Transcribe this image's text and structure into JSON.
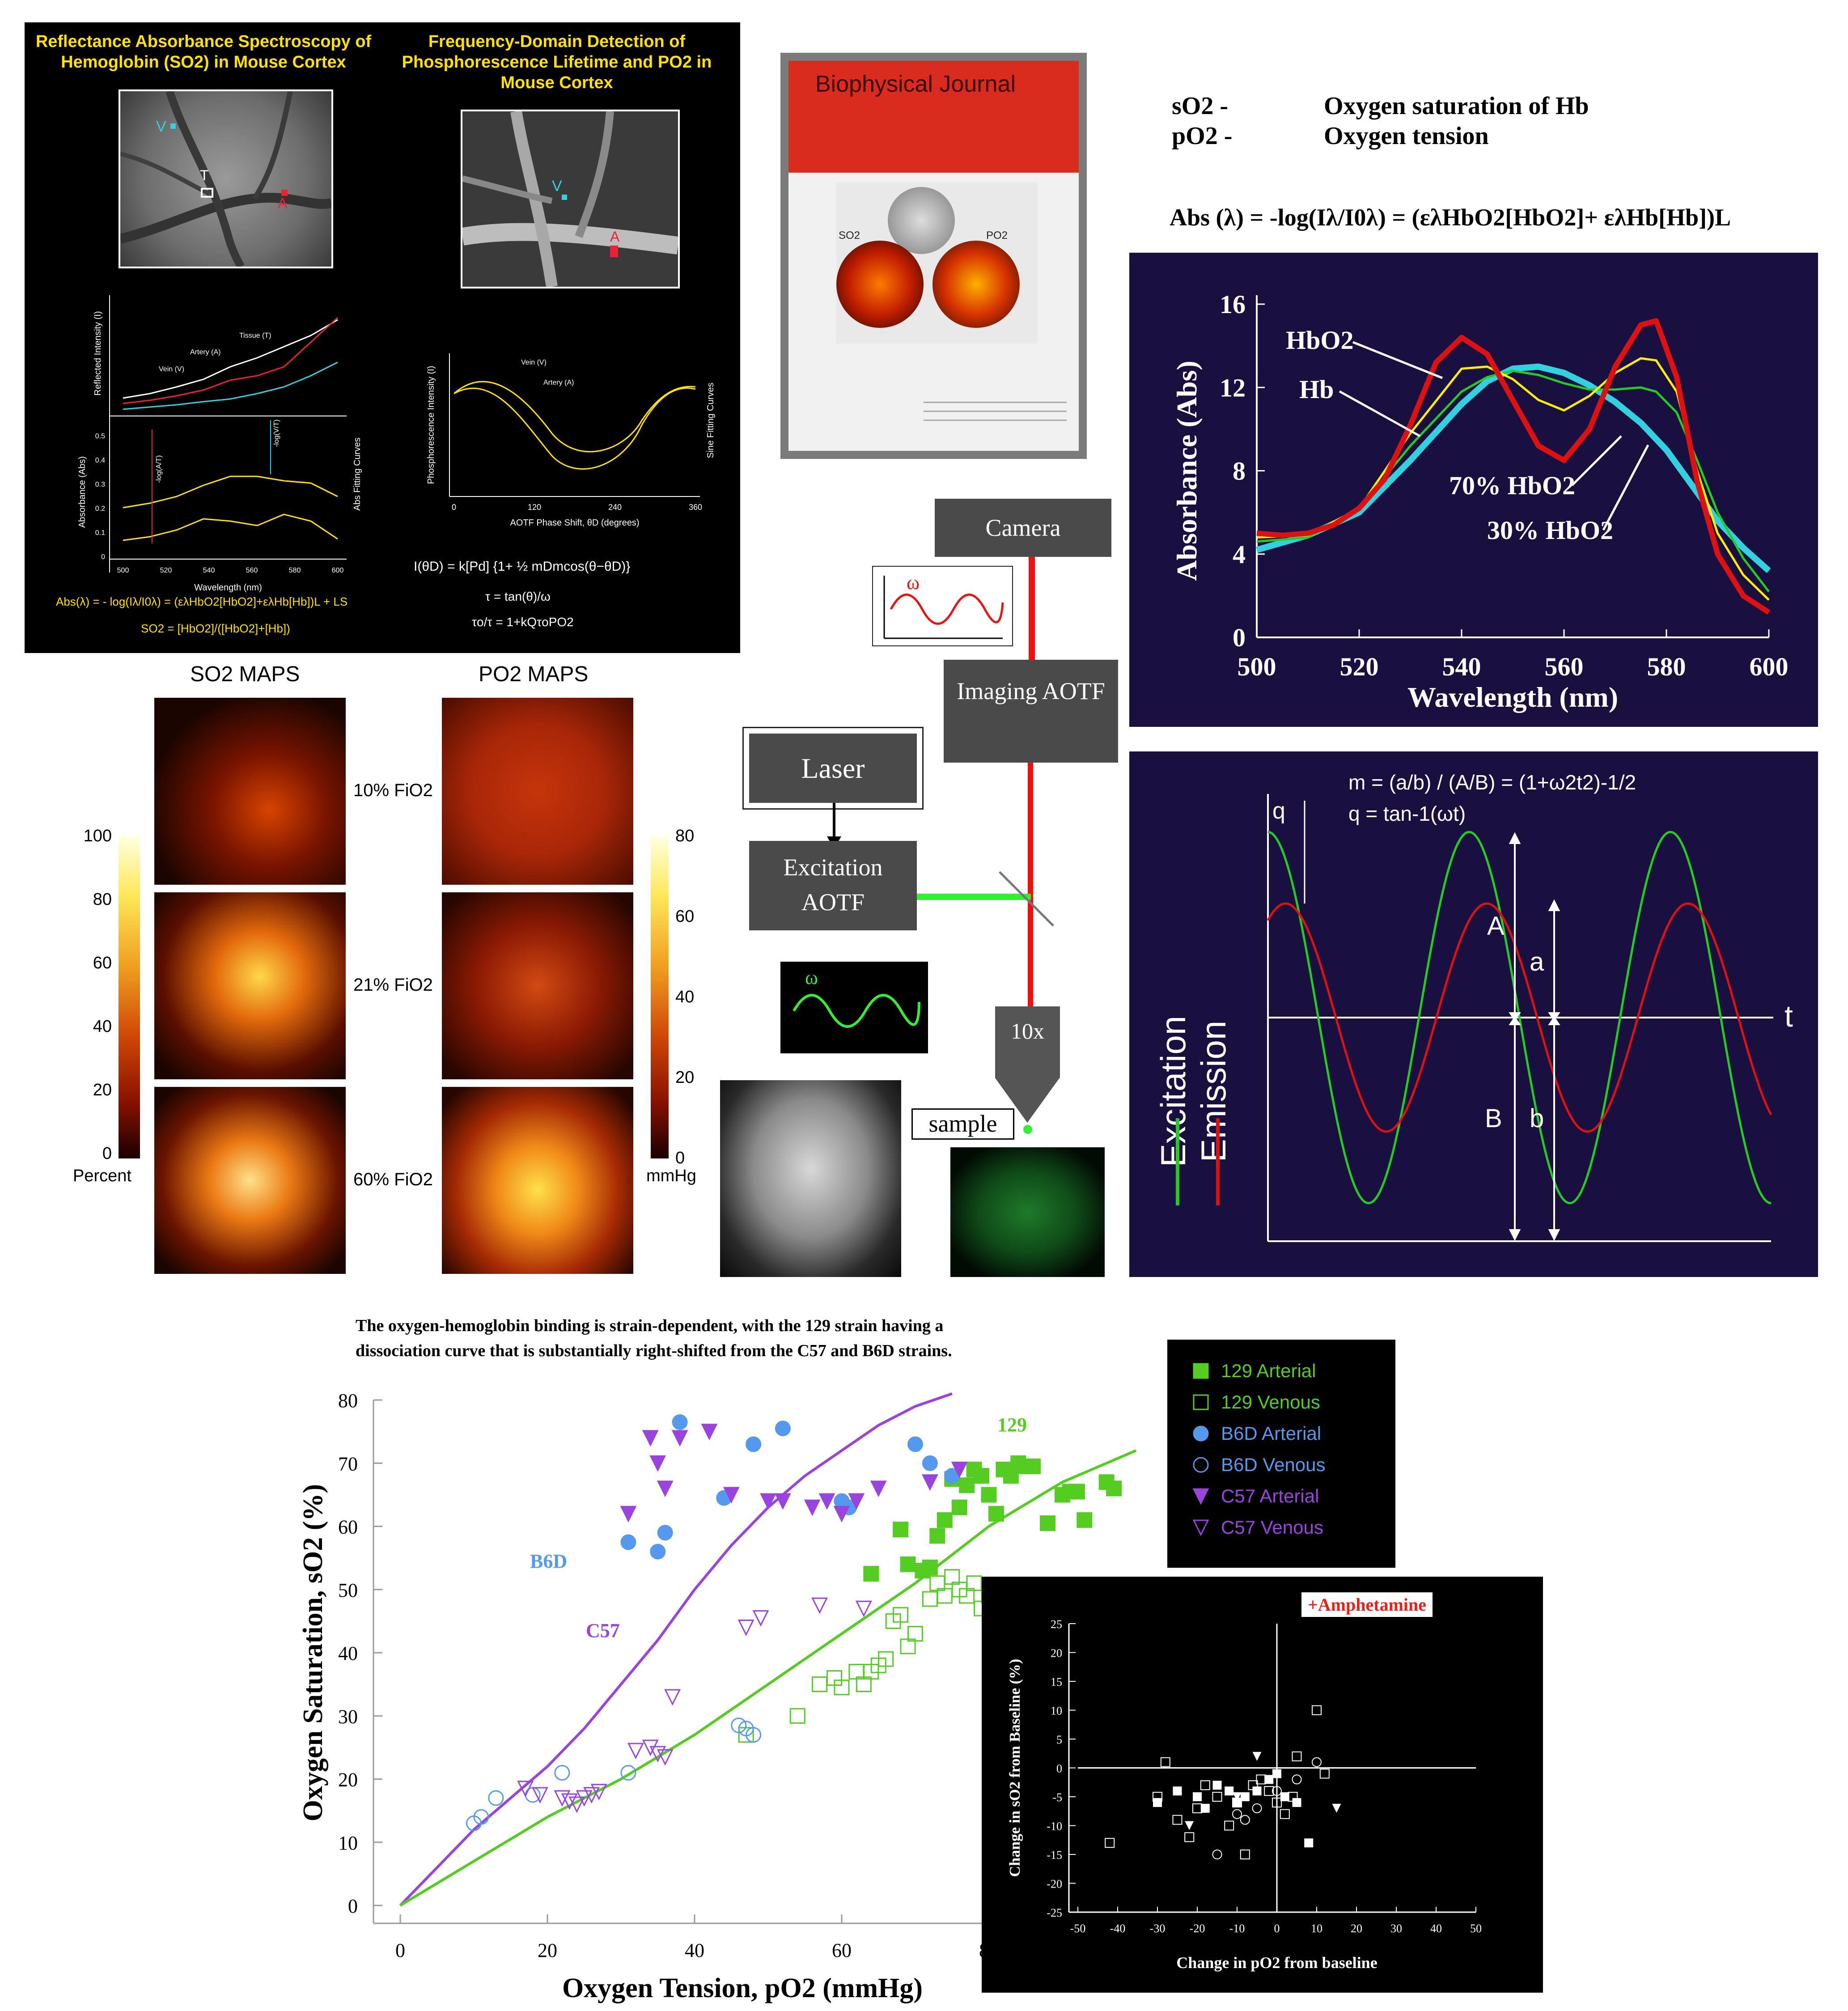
{
  "spectroscopy_panel": {
    "left_title": "Reflectance Absorbance Spectroscopy of Hemoglobin (SO2) in Mouse Cortex",
    "right_title": "Frequency-Domain Detection of Phosphorescence Lifetime and PO2 in Mouse Cortex",
    "left_image_labels": {
      "vein": "V",
      "tissue": "T",
      "artery": "A"
    },
    "right_image_labels": {
      "vein": "V",
      "artery": "A"
    },
    "reflect_ylabel": "Reflected Intensity (I)",
    "reflect_legend": [
      "Tissue (T)",
      "Artery (A)",
      "Vein (V)"
    ],
    "abs_ylabel": "Absorbance (Abs)",
    "abs_yticks": [
      "0.5",
      "0.4",
      "0.3",
      "0.2",
      "0.1",
      "0"
    ],
    "abs_right_label": "Abs Fitting Curves",
    "log_labels": [
      "-log(A/T)",
      "-log(V/T)"
    ],
    "wavelength_ticks": [
      "500",
      "520",
      "540",
      "560",
      "580",
      "600"
    ],
    "wavelength_xlabel": "Wavelength (nm)",
    "eq_abs": "Abs(λ) = - log(Iλ/I0λ) = (ελHbO2[HbO2]+ελHb[Hb])L + LS",
    "eq_so2": "SO2 = [HbO2]/([HbO2]+[Hb])",
    "phos_ylabel": "Phosphorescence Intensity (I)",
    "phos_legend": [
      "Vein (V)",
      "Artery (A)"
    ],
    "phos_right_label": "Sine Fitting Curves",
    "phase_ticks": [
      "0",
      "120",
      "240",
      "360"
    ],
    "phase_xlabel": "AOTF Phase Shift, θD (degrees)",
    "eq_phase": "I(θD) = k[Pd] {1+ ½ mDmcos(θ−θD)}",
    "eq_tau": "τ = tan(θ)/ω",
    "eq_stern": "τo/τ = 1+kQτoPO2"
  },
  "journal": {
    "title": "Biophysical Journal",
    "so2_label": "SO2",
    "po2_label": "PO2"
  },
  "definitions": {
    "so2_term": "sO2 -",
    "so2_def": "Oxygen saturation of Hb",
    "po2_term": "pO2 -",
    "po2_def": "Oxygen tension",
    "equation": "Abs (λ) = -log(Iλ/I0λ) = (ελHbO2[HbO2]+ ελHb[Hb])L"
  },
  "maps": {
    "so2_title": "SO2 MAPS",
    "po2_title": "PO2 MAPS",
    "fio2_labels": [
      "10% FiO2",
      "21% FiO2",
      "60% FiO2"
    ],
    "so2_scale": {
      "ticks": [
        "100",
        "80",
        "60",
        "40",
        "20",
        "0"
      ],
      "unit": "Percent"
    },
    "po2_scale": {
      "ticks": [
        "80",
        "60",
        "40",
        "20",
        "0"
      ],
      "unit": "mmHg"
    }
  },
  "setup": {
    "camera": "Camera",
    "imaging_aotf": "Imaging AOTF",
    "laser": "Laser",
    "excitation_aotf": "Excitation AOTF",
    "objective": "10x",
    "sample": "sample",
    "omega": "ω"
  },
  "waveform": {
    "eq_m": "m = (a/b) / (A/B) = (1+ω2t2)-1/2",
    "eq_q": "q = tan-1(ωt)",
    "q_label": "q",
    "labels": {
      "A": "A",
      "a": "a",
      "B": "B",
      "b": "b",
      "t": "t"
    },
    "legend": [
      "Excitation",
      "Emission"
    ],
    "colors": {
      "excitation": "#22cc22",
      "emission": "#dd1111"
    }
  },
  "abs_chart": {
    "annotations": [
      "HbO2",
      "Hb",
      "70% HbO2",
      "30% HbO2"
    ]
  },
  "dissociation": {
    "caption_line1": "The oxygen-hemoglobin binding is strain-dependent, with the 129 strain having a",
    "caption_line2": "dissociation curve that is substantially right-shifted from the C57 and B6D strains.",
    "curve_labels": [
      "129",
      "B6D",
      "C57"
    ],
    "legend": [
      "129 Arterial",
      "129 Venous",
      "B6D Arterial",
      "B6D Venous",
      "C57 Arterial",
      "C57 Venous"
    ]
  },
  "amphetamine": {
    "label": "+Amphetamine"
  },
  "chart_data": [
    {
      "type": "line",
      "title": "",
      "xlabel": "Wavelength (nm)",
      "ylabel": "Absorbance (Abs)",
      "xlim": [
        500,
        600
      ],
      "ylim": [
        0,
        16
      ],
      "xticks": [
        500,
        520,
        540,
        560,
        580,
        600
      ],
      "yticks": [
        0,
        4,
        8,
        12,
        16
      ],
      "background": "#1a1040",
      "series": [
        {
          "name": "HbO2",
          "color": "#dd1111",
          "x": [
            500,
            505,
            510,
            515,
            520,
            525,
            530,
            535,
            540,
            545,
            550,
            555,
            560,
            565,
            570,
            575,
            578,
            582,
            586,
            590,
            595,
            600
          ],
          "y": [
            5.0,
            4.9,
            5.0,
            5.4,
            6.2,
            7.6,
            10.2,
            13.2,
            14.4,
            13.6,
            11.4,
            9.2,
            8.5,
            10.0,
            13.0,
            15.0,
            15.2,
            12.5,
            7.5,
            4.0,
            2.0,
            1.2
          ]
        },
        {
          "name": "70% HbO2",
          "color": "#ffee00",
          "x": [
            500,
            510,
            520,
            530,
            540,
            545,
            550,
            555,
            560,
            565,
            570,
            575,
            578,
            582,
            586,
            590,
            595,
            600
          ],
          "y": [
            4.8,
            4.9,
            6.2,
            9.8,
            12.9,
            13.0,
            12.4,
            11.4,
            10.9,
            11.6,
            12.7,
            13.4,
            13.3,
            11.8,
            8.0,
            5.0,
            3.0,
            1.8
          ]
        },
        {
          "name": "30% HbO2",
          "color": "#22cc22",
          "x": [
            500,
            510,
            520,
            530,
            540,
            545,
            550,
            555,
            560,
            565,
            570,
            575,
            578,
            582,
            586,
            590,
            595,
            600
          ],
          "y": [
            4.6,
            4.8,
            6.2,
            9.2,
            11.8,
            12.5,
            12.8,
            12.6,
            12.2,
            11.9,
            11.9,
            12.0,
            11.8,
            10.8,
            8.5,
            6.0,
            3.8,
            2.2
          ]
        },
        {
          "name": "Hb",
          "color": "#33d0e0",
          "x": [
            500,
            510,
            520,
            530,
            540,
            545,
            550,
            555,
            560,
            565,
            570,
            575,
            580,
            585,
            590,
            595,
            600
          ],
          "y": [
            4.2,
            4.9,
            6.0,
            8.5,
            11.2,
            12.3,
            12.9,
            13.0,
            12.7,
            12.1,
            11.3,
            10.3,
            9.0,
            7.3,
            5.6,
            4.3,
            3.2
          ]
        }
      ]
    },
    {
      "type": "scatter",
      "title": "",
      "xlabel": "Oxygen Tension, pO2 (mmHg)",
      "ylabel": "Oxygen Saturation, sO2 (%)",
      "xlim": [
        0,
        100
      ],
      "ylim": [
        0,
        80
      ],
      "xticks": [
        0,
        20,
        40,
        60,
        80
      ],
      "yticks": [
        0,
        10,
        20,
        30,
        40,
        50,
        60,
        70,
        80
      ],
      "series": [
        {
          "name": "129 Arterial",
          "marker": "square-filled",
          "color": "#55cc22",
          "x": [
            64,
            68,
            69,
            71,
            72,
            73,
            74,
            75,
            76,
            77,
            78,
            79,
            80,
            81,
            82,
            83,
            84,
            85,
            86,
            88,
            90,
            91,
            92,
            93,
            96,
            97
          ],
          "y": [
            52.5,
            59.5,
            54,
            53,
            53.5,
            58.5,
            61,
            67.5,
            63,
            66.5,
            69,
            68,
            65,
            62,
            69,
            68,
            70,
            69.5,
            69.5,
            60.5,
            65,
            65.5,
            65.5,
            61,
            67,
            66
          ]
        },
        {
          "name": "129 Venous",
          "marker": "square-open",
          "color": "#55cc22",
          "x": [
            47,
            54,
            57,
            59,
            60,
            62,
            63,
            64,
            65,
            66,
            67,
            68,
            69,
            70,
            72,
            73,
            74,
            75,
            76,
            77,
            78,
            79,
            80,
            82
          ],
          "y": [
            27,
            30,
            35,
            36,
            34.5,
            37,
            35,
            37,
            38,
            39,
            45,
            46,
            41,
            43,
            48.5,
            51,
            49,
            52,
            50,
            49,
            51,
            47,
            49,
            48
          ]
        },
        {
          "name": "B6D Arterial",
          "marker": "circle-filled",
          "color": "#5599ee",
          "x": [
            31,
            35,
            36,
            38,
            44,
            48,
            52,
            60,
            61,
            70,
            72,
            75
          ],
          "y": [
            57.5,
            56,
            59,
            76.5,
            64.5,
            73,
            75.5,
            64,
            63,
            73,
            70,
            68
          ]
        },
        {
          "name": "B6D Venous",
          "marker": "circle-open",
          "color": "#5599ee",
          "x": [
            10,
            11,
            13,
            18,
            22,
            31,
            46,
            47,
            48
          ],
          "y": [
            13,
            14,
            17,
            17.5,
            21,
            21,
            28.5,
            28,
            27
          ]
        },
        {
          "name": "C57 Arterial",
          "marker": "triangle-filled",
          "color": "#9944dd",
          "x": [
            31,
            34,
            35,
            36,
            38,
            42,
            45,
            50,
            52,
            56,
            58,
            60,
            62,
            65,
            72,
            76
          ],
          "y": [
            62,
            74,
            70,
            66,
            74,
            75,
            65,
            64,
            64,
            63,
            64,
            62,
            64,
            66,
            67,
            69
          ]
        },
        {
          "name": "C57 Venous",
          "marker": "triangle-open",
          "color": "#9944dd",
          "x": [
            17,
            19,
            22,
            23,
            24,
            25,
            26,
            27,
            32,
            34,
            35,
            36,
            37,
            47,
            49,
            57,
            63
          ],
          "y": [
            18.5,
            17.5,
            17,
            16.5,
            16,
            17,
            17.5,
            18,
            24.5,
            25,
            24,
            23.5,
            33,
            44,
            45.5,
            47.5,
            47
          ]
        }
      ],
      "curves": [
        {
          "name": "C57",
          "color": "#9944dd",
          "x": [
            0,
            5,
            10,
            15,
            20,
            25,
            30,
            35,
            40,
            45,
            50,
            55,
            60,
            65,
            70,
            75
          ],
          "y": [
            0,
            6,
            12,
            17,
            22,
            28,
            35,
            42,
            50,
            57,
            63,
            68,
            72,
            76,
            79,
            81
          ]
        },
        {
          "name": "129",
          "color": "#55cc22",
          "x": [
            0,
            10,
            20,
            30,
            40,
            50,
            60,
            70,
            80,
            90,
            100
          ],
          "y": [
            0,
            7,
            14,
            20,
            27,
            35,
            43,
            51,
            60,
            67,
            72
          ]
        }
      ]
    },
    {
      "type": "scatter",
      "title": "",
      "xlabel": "Change in pO2 from baseline",
      "ylabel": "Change in sO2 from Baseline (%)",
      "xlim": [
        -50,
        50
      ],
      "ylim": [
        -25,
        25
      ],
      "xticks": [
        -50,
        -40,
        -30,
        -20,
        -10,
        0,
        10,
        20,
        30,
        40,
        50
      ],
      "yticks": [
        25,
        20,
        15,
        10,
        5,
        0,
        -5,
        -10,
        -15,
        -20,
        -25
      ],
      "series": [
        {
          "name": "open squares",
          "marker": "square-open",
          "x": [
            -42,
            -30,
            -28,
            -25,
            -22,
            -20,
            -18,
            -15,
            -12,
            -10,
            -8,
            -6,
            -4,
            -2,
            0,
            2,
            4,
            5,
            10,
            12
          ],
          "y": [
            -13,
            -5,
            1,
            -9,
            -12,
            -7,
            -3,
            -5,
            -10,
            -6,
            -15,
            -3,
            -2,
            -4,
            -6,
            -8,
            -5,
            2,
            10,
            -1
          ]
        },
        {
          "name": "filled squares",
          "marker": "square-filled",
          "x": [
            -30,
            -25,
            -20,
            -18,
            -15,
            -12,
            -10,
            -8,
            -5,
            -2,
            0,
            2,
            5,
            8
          ],
          "y": [
            -6,
            -4,
            -5,
            -7,
            -3,
            -4,
            -6,
            -5,
            -4,
            -2,
            -1,
            -5,
            -6,
            -13
          ]
        },
        {
          "name": "circles",
          "marker": "circle",
          "x": [
            -15,
            -10,
            -8,
            -5,
            0,
            5,
            10
          ],
          "y": [
            -15,
            -8,
            -9,
            -7,
            -4,
            -2,
            1
          ]
        },
        {
          "name": "triangles",
          "marker": "triangle-filled",
          "x": [
            -22,
            -10,
            -5,
            15
          ],
          "y": [
            -10,
            -5,
            2,
            -7
          ]
        }
      ]
    }
  ]
}
